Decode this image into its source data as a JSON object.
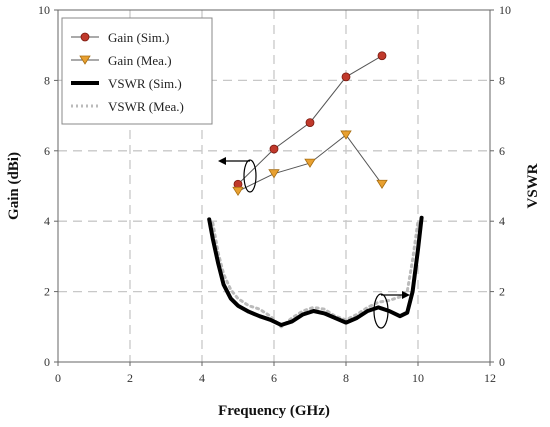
{
  "chart_data": {
    "type": "line",
    "xlabel": "Frequency (GHz)",
    "ylabel_left": "Gain (dBi)",
    "ylabel_right": "VSWR",
    "xlim": [
      0,
      12
    ],
    "ylim_left": [
      0,
      10
    ],
    "ylim_right": [
      0,
      10
    ],
    "xticks": [
      "0",
      "2",
      "4",
      "6",
      "8",
      "10",
      "12"
    ],
    "yticks_left": [
      "0",
      "2",
      "4",
      "6",
      "8",
      "10"
    ],
    "yticks_right": [
      "0",
      "2",
      "4",
      "6",
      "8",
      "10"
    ],
    "grid": "dashed",
    "legend_position": "top-left",
    "series": [
      {
        "name": "Gain (Sim.)",
        "axis": "left",
        "style": "line-markers",
        "marker": "circle",
        "color": "#c0392b",
        "line_color": "#555555",
        "x": [
          5,
          6,
          7,
          8,
          9
        ],
        "y": [
          5.05,
          6.05,
          6.8,
          8.1,
          8.7
        ]
      },
      {
        "name": "Gain (Mea.)",
        "axis": "left",
        "style": "line-markers",
        "marker": "triangle-down",
        "color": "#e8a030",
        "line_color": "#555555",
        "x": [
          5,
          6,
          7,
          8,
          9
        ],
        "y": [
          4.85,
          5.35,
          5.65,
          6.45,
          5.05
        ]
      },
      {
        "name": "VSWR (Sim.)",
        "axis": "right",
        "style": "solid-thick",
        "color": "#000000",
        "x": [
          4.2,
          4.3,
          4.45,
          4.6,
          4.8,
          5.0,
          5.3,
          5.6,
          5.9,
          6.2,
          6.5,
          6.8,
          7.1,
          7.4,
          7.7,
          8.0,
          8.3,
          8.6,
          8.9,
          9.2,
          9.5,
          9.7,
          9.85,
          10.0,
          10.1
        ],
        "y": [
          4.05,
          3.5,
          2.8,
          2.2,
          1.8,
          1.6,
          1.43,
          1.3,
          1.2,
          1.05,
          1.15,
          1.35,
          1.45,
          1.38,
          1.25,
          1.12,
          1.25,
          1.45,
          1.55,
          1.45,
          1.3,
          1.4,
          2.0,
          3.2,
          4.1
        ]
      },
      {
        "name": "VSWR (Mea.)",
        "axis": "right",
        "style": "dotted",
        "color": "#bbbbbb",
        "x": [
          4.3,
          4.45,
          4.6,
          4.8,
          5.0,
          5.3,
          5.6,
          5.9,
          6.2,
          6.5,
          6.8,
          7.1,
          7.4,
          7.7,
          8.0,
          8.3,
          8.6,
          8.9,
          9.2,
          9.5,
          9.7,
          9.85,
          10.0
        ],
        "y": [
          3.95,
          3.1,
          2.5,
          2.05,
          1.8,
          1.6,
          1.5,
          1.3,
          1.0,
          1.25,
          1.45,
          1.55,
          1.5,
          1.3,
          1.2,
          1.35,
          1.55,
          1.7,
          1.75,
          1.85,
          2.0,
          2.9,
          4.0
        ]
      }
    ]
  }
}
